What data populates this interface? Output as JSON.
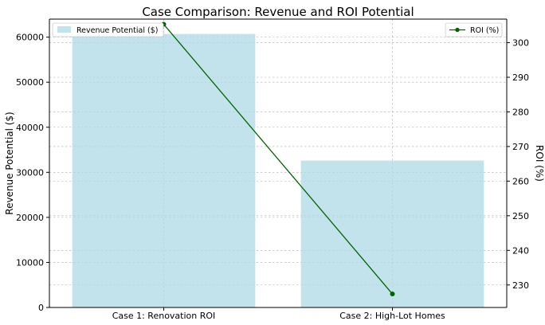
{
  "chart_data": {
    "type": "bar+line",
    "title": "Case Comparison: Revenue and ROI Potential",
    "categories": [
      "Case 1: Renovation ROI",
      "Case 2: High-Lot Homes"
    ],
    "bar_series": {
      "name": "Revenue Potential ($)",
      "values": [
        60700,
        32600
      ],
      "color": "#add8e6"
    },
    "line_series": {
      "name": "ROI (%)",
      "values": [
        305.3,
        227.4
      ],
      "color": "#006400"
    },
    "xlabel": "",
    "ylabel_left": "Revenue Potential ($)",
    "ylabel_right": "ROI (%)",
    "ylim_left": [
      0,
      64000
    ],
    "ylim_right": [
      223.5,
      306.8
    ],
    "yticks_left": [
      0,
      10000,
      20000,
      30000,
      40000,
      50000,
      60000
    ],
    "yticks_right": [
      230,
      240,
      250,
      260,
      270,
      280,
      290,
      300
    ],
    "grid": true,
    "legend_left_placement": "top-left",
    "legend_right_placement": "top-right"
  }
}
